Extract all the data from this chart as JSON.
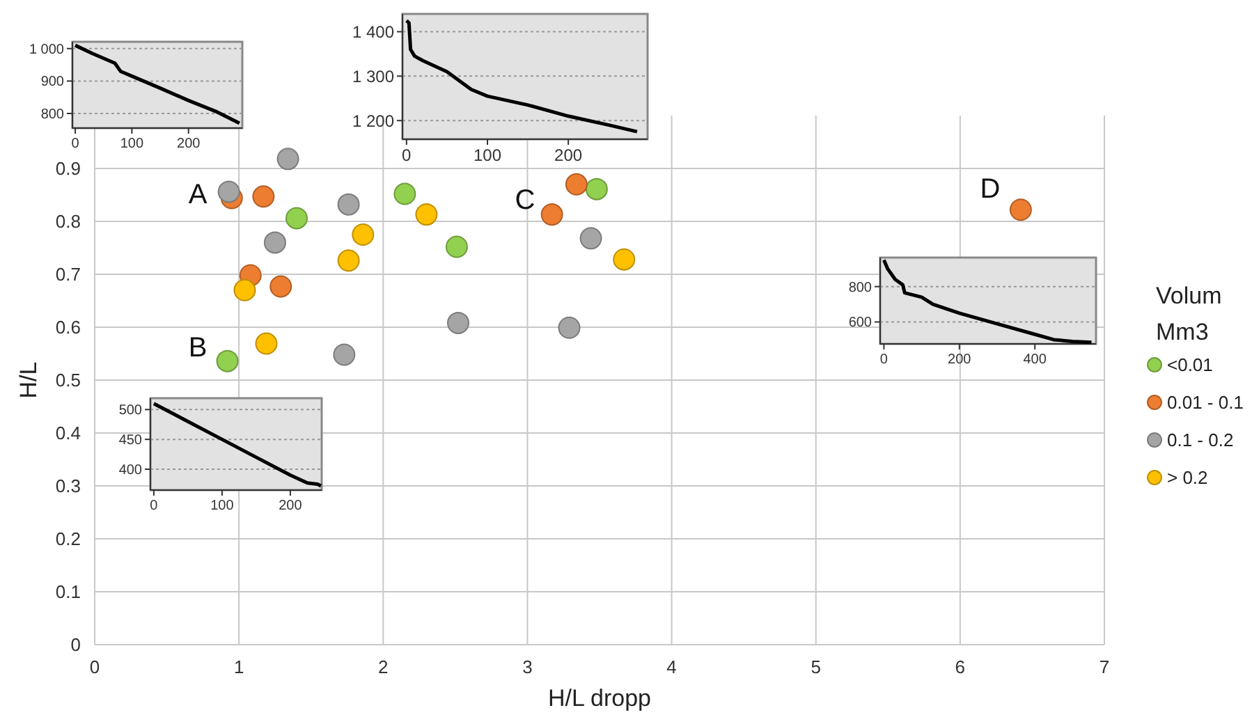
{
  "chart_data": [
    {
      "type": "scatter",
      "xlabel": "H/L dropp",
      "ylabel": "H/L",
      "xlim": [
        0,
        7
      ],
      "ylim": [
        0,
        1
      ],
      "xticks": [
        0,
        1,
        2,
        3,
        4,
        5,
        6,
        7
      ],
      "yticks": [
        0,
        0.1,
        0.2,
        0.3,
        0.4,
        0.5,
        0.6,
        0.7,
        0.8,
        0.9
      ],
      "grid": true,
      "marker": "circle",
      "legend": "right",
      "legend_title": "Volum Mm3",
      "annotations": [
        "A",
        "B",
        "C",
        "D"
      ],
      "series": [
        {
          "name": "<0.01",
          "color": "#92d050",
          "x": [
            0.92,
            1.4,
            2.15,
            2.51,
            3.48
          ],
          "values": [
            0.536,
            0.806,
            0.852,
            0.752,
            0.861
          ]
        },
        {
          "name": "0.01 - 0.1",
          "color": "#ed7d31",
          "x": [
            0.95,
            1.17,
            1.08,
            1.29,
            3.34,
            3.17,
            6.42
          ],
          "values": [
            0.844,
            0.847,
            0.698,
            0.677,
            0.87,
            0.813,
            0.822
          ]
        },
        {
          "name": "0.1 - 0.2",
          "color": "#a5a5a5",
          "x": [
            0.93,
            1.34,
            1.76,
            1.25,
            2.52,
            3.29,
            3.44,
            1.73
          ],
          "values": [
            0.856,
            0.918,
            0.832,
            0.76,
            0.608,
            0.599,
            0.768,
            0.548
          ]
        },
        {
          "name": "> 0.2",
          "color": "#ffc000",
          "x": [
            2.3,
            1.86,
            1.76,
            1.04,
            1.19,
            3.67
          ],
          "values": [
            0.813,
            0.775,
            0.726,
            0.67,
            0.569,
            0.728
          ]
        }
      ]
    },
    {
      "type": "line",
      "xlim": [
        -5,
        295
      ],
      "ylim": [
        755,
        1021
      ],
      "xticks": [
        0,
        100,
        200
      ],
      "yticks": [
        800,
        900,
        {
          "value": 1000,
          "label": "1 000"
        }
      ],
      "grid": "y",
      "series": [
        {
          "color": "#000000",
          "x": [
            0,
            30,
            70,
            80,
            100,
            150,
            200,
            250,
            290
          ],
          "values": [
            1010,
            985,
            955,
            930,
            915,
            878,
            840,
            805,
            770
          ]
        }
      ]
    },
    {
      "type": "line",
      "xlim": [
        -5,
        298
      ],
      "ylim": [
        1158,
        1440
      ],
      "xticks": [
        0,
        100,
        200
      ],
      "yticks": [
        {
          "value": 1200,
          "label": "1 200"
        },
        {
          "value": 1300,
          "label": "1 300"
        },
        {
          "value": 1400,
          "label": "1 400"
        }
      ],
      "grid": "y",
      "series": [
        {
          "color": "#000000",
          "x": [
            0,
            3,
            5,
            10,
            20,
            50,
            80,
            100,
            150,
            200,
            250,
            285
          ],
          "values": [
            1425,
            1420,
            1360,
            1345,
            1335,
            1310,
            1270,
            1255,
            1235,
            1210,
            1190,
            1175
          ]
        }
      ]
    },
    {
      "type": "line",
      "xlim": [
        -10,
        562
      ],
      "ylim": [
        476,
        964
      ],
      "xticks": [
        0,
        200,
        400
      ],
      "yticks": [
        600,
        800
      ],
      "grid": "y",
      "series": [
        {
          "color": "#000000",
          "x": [
            0,
            10,
            30,
            50,
            55,
            100,
            130,
            200,
            300,
            400,
            450,
            500,
            550
          ],
          "values": [
            950,
            900,
            840,
            810,
            765,
            740,
            700,
            650,
            590,
            530,
            500,
            490,
            485
          ]
        }
      ]
    },
    {
      "type": "line",
      "xlim": [
        -5,
        246
      ],
      "ylim": [
        365,
        519
      ],
      "xticks": [
        0,
        100,
        200
      ],
      "yticks": [
        400,
        450,
        500
      ],
      "grid": "y",
      "series": [
        {
          "color": "#000000",
          "x": [
            0,
            50,
            100,
            150,
            200,
            225,
            240,
            245
          ],
          "values": [
            510,
            480,
            450,
            420,
            390,
            377,
            375,
            372
          ]
        }
      ]
    }
  ]
}
